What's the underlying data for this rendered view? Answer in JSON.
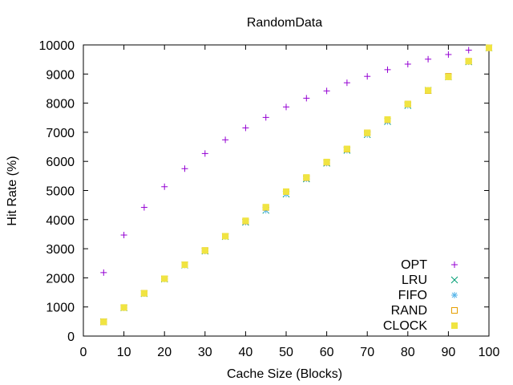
{
  "chart_data": {
    "type": "scatter",
    "title": "RandomData",
    "xlabel": "Cache Size (Blocks)",
    "ylabel": "Hit Rate (%)",
    "xlim": [
      0,
      100
    ],
    "ylim": [
      0,
      10000
    ],
    "xticks": [
      0,
      10,
      20,
      30,
      40,
      50,
      60,
      70,
      80,
      90,
      100
    ],
    "yticks": [
      0,
      1000,
      2000,
      3000,
      4000,
      5000,
      6000,
      7000,
      8000,
      9000,
      10000
    ],
    "grid": false,
    "legend_position": "bottom-right",
    "x": [
      5,
      10,
      15,
      20,
      25,
      30,
      35,
      40,
      45,
      50,
      55,
      60,
      65,
      70,
      75,
      80,
      85,
      90,
      95,
      100
    ],
    "series": [
      {
        "name": "OPT",
        "marker": "plus",
        "color": "#9400d3",
        "values": [
          2180,
          3470,
          4420,
          5130,
          5750,
          6270,
          6740,
          7150,
          7510,
          7870,
          8170,
          8420,
          8700,
          8920,
          9150,
          9340,
          9510,
          9670,
          9820,
          9900
        ]
      },
      {
        "name": "LRU",
        "marker": "cross",
        "color": "#009e73",
        "values": [
          490,
          970,
          1460,
          1960,
          2440,
          2920,
          3420,
          3910,
          4320,
          4880,
          5400,
          5940,
          6380,
          6920,
          7370,
          7920,
          8440,
          8900,
          9420,
          9900
        ]
      },
      {
        "name": "FIFO",
        "marker": "asterisk",
        "color": "#56b4e9",
        "values": [
          490,
          970,
          1460,
          1960,
          2440,
          2920,
          3420,
          3910,
          4320,
          4880,
          5400,
          5940,
          6380,
          6920,
          7370,
          7920,
          8440,
          8900,
          9420,
          9900
        ]
      },
      {
        "name": "RAND",
        "marker": "open-square",
        "color": "#e69f00",
        "values": [
          490,
          980,
          1470,
          1970,
          2450,
          2940,
          3430,
          3950,
          4420,
          4960,
          5440,
          5970,
          6420,
          6980,
          7430,
          7970,
          8430,
          8920,
          9440,
          9900
        ]
      },
      {
        "name": "CLOCK",
        "marker": "filled-square",
        "color": "#f0e442",
        "values": [
          490,
          980,
          1470,
          1970,
          2450,
          2940,
          3430,
          3960,
          4430,
          4960,
          5450,
          5980,
          6430,
          6980,
          7440,
          7970,
          8440,
          8900,
          9440,
          9900
        ]
      }
    ]
  }
}
